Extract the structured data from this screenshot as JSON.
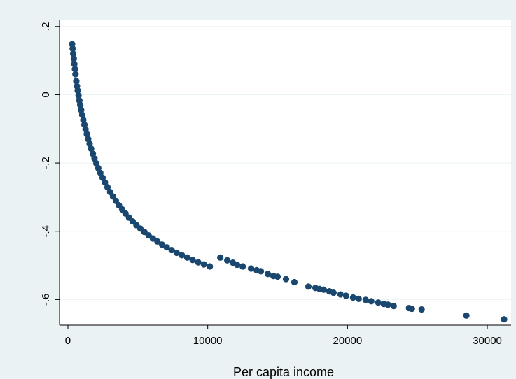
{
  "chart_data": {
    "type": "scatter",
    "title": "",
    "xlabel": "Per capita income",
    "ylabel": "",
    "xlim": [
      -600,
      31700
    ],
    "ylim": [
      -0.675,
      0.22
    ],
    "x_ticks": [
      0,
      10000,
      20000,
      30000
    ],
    "x_tick_labels": [
      "0",
      "10000",
      "20000",
      "30000"
    ],
    "y_ticks": [
      -0.6,
      -0.4,
      -0.2,
      0,
      0.2
    ],
    "y_tick_labels": [
      "-.6",
      "-.4",
      "-.2",
      "0",
      ".2"
    ],
    "grid": true,
    "colors": {
      "marker": "#1a476f",
      "plot_bg": "#ffffff",
      "outer_bg": "#eaf2f3",
      "grid": "#eaf2f3"
    },
    "series": [
      {
        "x": [
          300,
          340,
          380,
          420,
          460,
          500,
          540,
          600,
          650,
          700,
          760,
          820,
          880,
          950,
          1020,
          1100,
          1180,
          1260,
          1350,
          1450,
          1550,
          1660,
          1780,
          1900,
          2030,
          2170,
          2320,
          2480,
          2650,
          2830,
          3020,
          3220,
          3430,
          3650,
          3880,
          4120,
          4370,
          4630,
          4900,
          5180,
          5470,
          5770,
          6080,
          6400,
          6730,
          7070,
          7420,
          7780,
          8150,
          8530,
          8920,
          9320,
          9730,
          10150,
          10900,
          11400,
          11800,
          12100,
          12500,
          13100,
          13500,
          13800,
          14300,
          14700,
          15000,
          15600,
          16200,
          17200,
          17700,
          18000,
          18300,
          18700,
          19000,
          19500,
          19900,
          20400,
          20800,
          21300,
          21700,
          22200,
          22600,
          22900,
          23300,
          24400,
          24600,
          25300,
          28500,
          31200
        ],
        "y": [
          0.148,
          0.135,
          0.12,
          0.105,
          0.09,
          0.075,
          0.06,
          0.04,
          0.025,
          0.012,
          -0.003,
          -0.017,
          -0.03,
          -0.045,
          -0.059,
          -0.074,
          -0.088,
          -0.101,
          -0.115,
          -0.13,
          -0.144,
          -0.158,
          -0.173,
          -0.187,
          -0.201,
          -0.215,
          -0.229,
          -0.243,
          -0.257,
          -0.271,
          -0.285,
          -0.298,
          -0.311,
          -0.324,
          -0.336,
          -0.348,
          -0.36,
          -0.371,
          -0.382,
          -0.392,
          -0.402,
          -0.412,
          -0.421,
          -0.43,
          -0.439,
          -0.447,
          -0.455,
          -0.463,
          -0.47,
          -0.477,
          -0.484,
          -0.491,
          -0.497,
          -0.503,
          -0.477,
          -0.485,
          -0.492,
          -0.498,
          -0.503,
          -0.509,
          -0.514,
          -0.517,
          -0.525,
          -0.531,
          -0.533,
          -0.54,
          -0.549,
          -0.562,
          -0.566,
          -0.569,
          -0.571,
          -0.576,
          -0.58,
          -0.585,
          -0.589,
          -0.594,
          -0.598,
          -0.601,
          -0.605,
          -0.609,
          -0.613,
          -0.615,
          -0.619,
          -0.625,
          -0.627,
          -0.629,
          -0.647,
          -0.658
        ]
      }
    ]
  }
}
